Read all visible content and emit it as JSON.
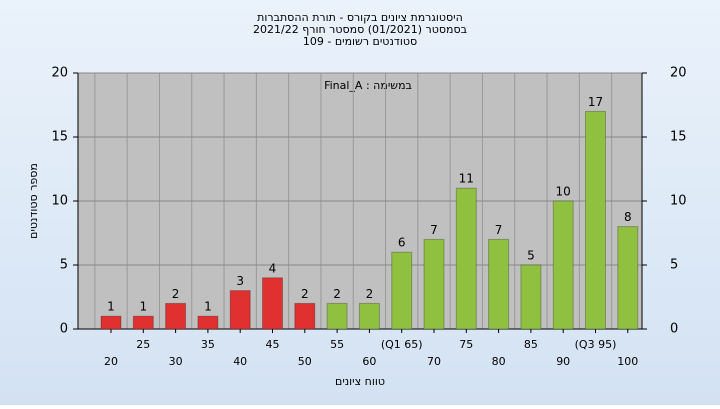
{
  "chart_data": {
    "type": "bar",
    "title": [
      "היסטוגרמת ציונים בקורס - תורת ההסתברות",
      "בסמסטר (01/2021) סמסטר חורף 2021/22",
      "סטודנטים רשומים - 109"
    ],
    "annotation": "Final_A : במשימה",
    "x_label": "טווח ציונים",
    "y_label": "מספר סטודנטים",
    "categories": [
      "20",
      "25",
      "30",
      "35",
      "40",
      "45",
      "50",
      "55",
      "60",
      "(Q1 65)",
      "70",
      "75",
      "80",
      "85",
      "90",
      "(Q3 95)",
      "100"
    ],
    "values": [
      1,
      1,
      2,
      1,
      3,
      4,
      2,
      2,
      2,
      6,
      7,
      11,
      7,
      5,
      10,
      17,
      8
    ],
    "colors": [
      "#e03030",
      "#e03030",
      "#e03030",
      "#e03030",
      "#e03030",
      "#e03030",
      "#e03030",
      "#8fc040",
      "#8fc040",
      "#8fc040",
      "#8fc040",
      "#8fc040",
      "#8fc040",
      "#8fc040",
      "#8fc040",
      "#8fc040",
      "#8fc040"
    ],
    "ylim": [
      0,
      20
    ],
    "yticks": [
      0,
      5,
      10,
      15,
      20
    ],
    "grid": true
  }
}
